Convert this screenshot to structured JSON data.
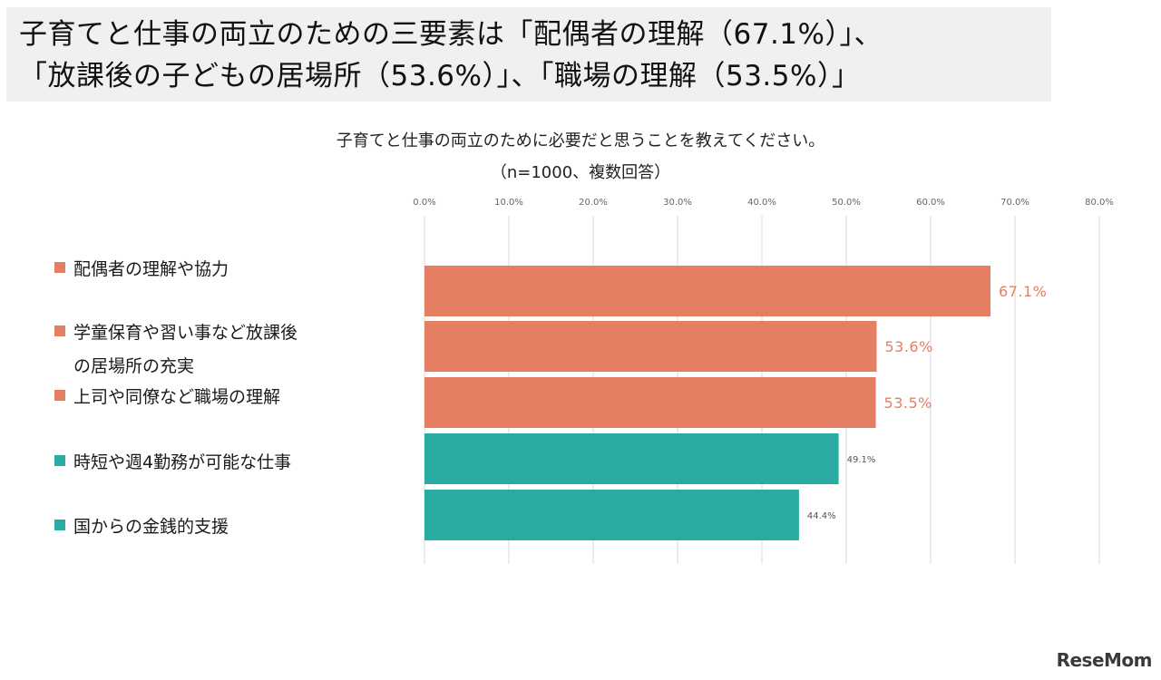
{
  "headline": {
    "line1": "子育てと仕事の両立のための三要素は「配偶者の理解（67.1%）」、",
    "line2": "「放課後の子どもの居場所（53.6%）」、「職場の理解（53.5%）」"
  },
  "logo_text": "ReseMom",
  "chart_data": {
    "type": "bar",
    "orientation": "horizontal",
    "title": "子育てと仕事の両立のために必要だと思うことを教えてください。",
    "subtitle": "（n=1000、複数回答）",
    "x_ticks": [
      "0.0%",
      "10.0%",
      "20.0%",
      "30.0%",
      "40.0%",
      "50.0%",
      "60.0%",
      "70.0%",
      "80.0%"
    ],
    "xlim": [
      0,
      80
    ],
    "grid": true,
    "categories": [
      [
        "配偶者の理解や協力"
      ],
      [
        "学童保育や習い事など放課後",
        "の居場所の充実"
      ],
      [
        "上司や同僚など職場の理解"
      ],
      [
        "時短や週4勤務が可能な仕事"
      ],
      [
        "国からの金銭的支援"
      ]
    ],
    "values": [
      67.1,
      53.6,
      53.5,
      49.1,
      44.4
    ],
    "value_labels": [
      "67.1%",
      "53.6%",
      "53.5%",
      "49.1%",
      "44.4%"
    ],
    "highlight": [
      true,
      true,
      true,
      false,
      false
    ],
    "colors": {
      "highlight": "#e47f64",
      "normal": "#2aaba2"
    }
  }
}
